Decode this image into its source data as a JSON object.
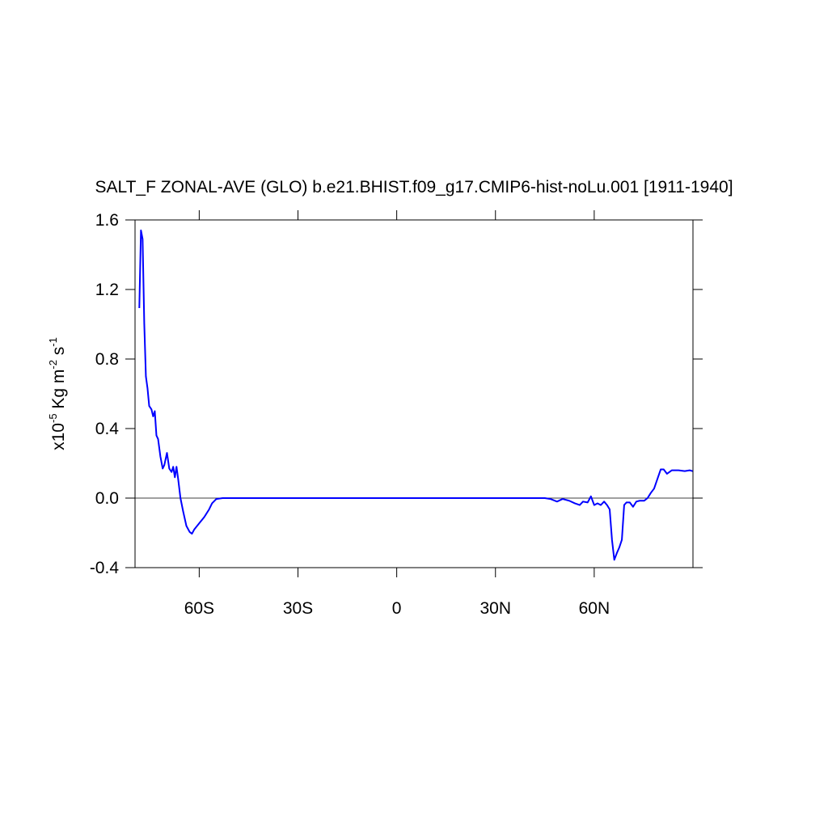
{
  "chart_data": {
    "type": "line",
    "title": "SALT_F ZONAL-AVE (GLO) b.e21.BHIST.f09_g17.CMIP6-hist-noLu.001 [1911-1940]",
    "ylabel": {
      "parts": [
        "x10",
        "-5",
        " Kg m",
        "-2",
        " s",
        "-1"
      ],
      "superscript": [
        false,
        true,
        false,
        true,
        false,
        true
      ]
    },
    "xlim": [
      -79.5,
      90
    ],
    "xticks": [
      {
        "value": -60,
        "label": "60S"
      },
      {
        "value": -30,
        "label": "30S"
      },
      {
        "value": 0,
        "label": "0"
      },
      {
        "value": 30,
        "label": "30N"
      },
      {
        "value": 60,
        "label": "60N"
      }
    ],
    "ylim": [
      -0.4,
      1.6
    ],
    "yticks": [
      -0.4,
      {
        "value": 0,
        "label": "0.0"
      },
      0.4,
      0.8,
      1.2,
      1.6
    ],
    "reference_line": 0,
    "series": [
      {
        "color": "#0000ff",
        "x": [
          -78.2,
          -77.7,
          -77.2,
          -76.7,
          -76.2,
          -75.7,
          -75.2,
          -74.5,
          -74.0,
          -73.5,
          -73.0,
          -72.5,
          -71.8,
          -71.1,
          -70.6,
          -69.8,
          -69.1,
          -68.4,
          -67.9,
          -67.4,
          -66.9,
          -66.4,
          -65.7,
          -64.9,
          -63.9,
          -62.9,
          -62.2,
          -61.5,
          -60,
          -58.5,
          -57.0,
          -56.1,
          -54.8,
          -52.9,
          45,
          46.7,
          48.7,
          50.4,
          52.4,
          54.1,
          55.6,
          56.6,
          58.0,
          59.0,
          60,
          61.0,
          62.0,
          63.0,
          63.9,
          64.7,
          65.4,
          66.1,
          66.9,
          67.6,
          68.4,
          69.1,
          69.8,
          70.8,
          71.8,
          72.8,
          73.8,
          75.2,
          76.2,
          77.2,
          78.2,
          79.2,
          80.2,
          81.1,
          82.1,
          83.6,
          85.6,
          87.5,
          89.0,
          89.9
        ],
        "values": [
          1.093,
          1.54,
          1.49,
          1.005,
          0.7,
          0.63,
          0.53,
          0.51,
          0.47,
          0.5,
          0.36,
          0.34,
          0.24,
          0.17,
          0.19,
          0.26,
          0.17,
          0.15,
          0.18,
          0.12,
          0.18,
          0.11,
          0.0,
          -0.075,
          -0.16,
          -0.195,
          -0.205,
          -0.18,
          -0.145,
          -0.11,
          -0.065,
          -0.03,
          -0.005,
          0,
          0,
          -0.005,
          -0.02,
          -0.005,
          -0.015,
          -0.03,
          -0.04,
          -0.02,
          -0.025,
          0.01,
          -0.04,
          -0.03,
          -0.04,
          -0.02,
          -0.04,
          -0.065,
          -0.24,
          -0.355,
          -0.315,
          -0.285,
          -0.24,
          -0.04,
          -0.025,
          -0.025,
          -0.05,
          -0.02,
          -0.015,
          -0.015,
          0,
          0.03,
          0.055,
          0.11,
          0.165,
          0.165,
          0.14,
          0.16,
          0.16,
          0.155,
          0.16,
          0.155
        ]
      }
    ]
  }
}
